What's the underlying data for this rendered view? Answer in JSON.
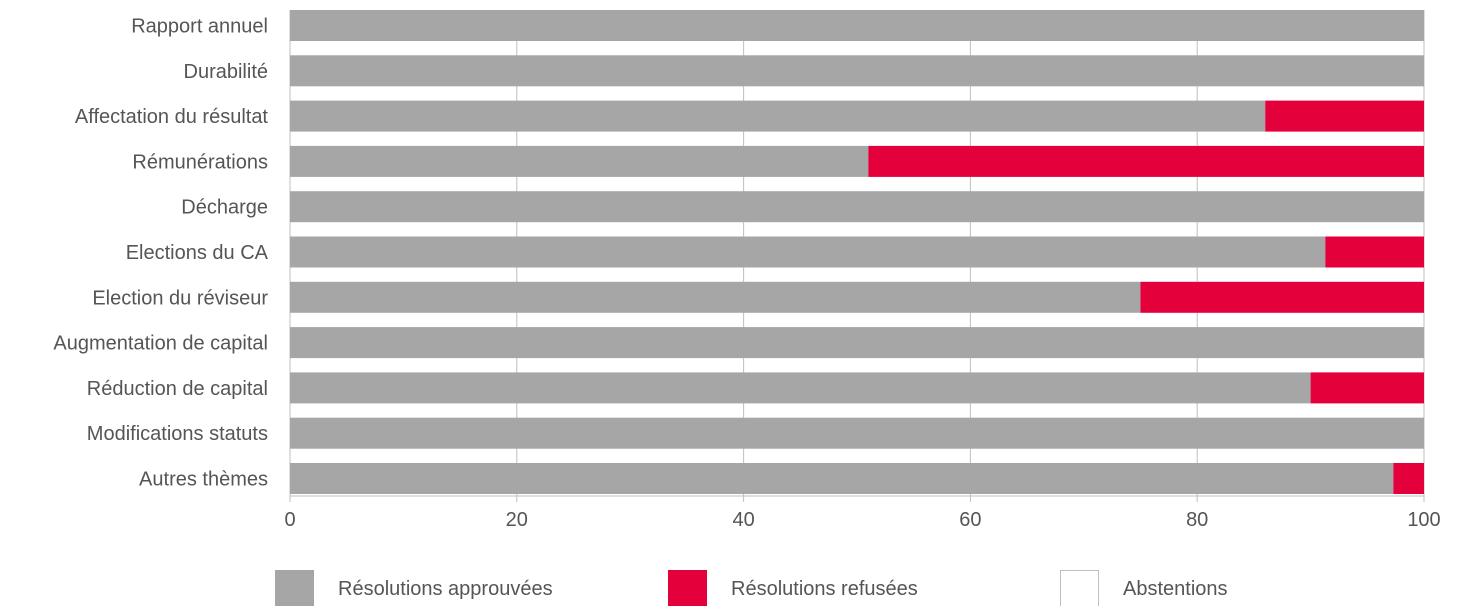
{
  "chart_data": {
    "type": "bar",
    "orientation": "horizontal",
    "stacked": true,
    "categories": [
      "Rapport annuel",
      "Durabilité",
      "Affectation du résultat",
      "Rémunérations",
      "Décharge",
      "Elections du CA",
      "Election du réviseur",
      "Augmentation de capital",
      "Réduction de capital",
      "Modifications statuts",
      "Autres thèmes"
    ],
    "series": [
      {
        "name": "Résolutions approuvées",
        "color": "#a6a6a6",
        "values": [
          100,
          100,
          86,
          51,
          100,
          91.3,
          75,
          100,
          90,
          100,
          97.3
        ]
      },
      {
        "name": "Résolutions refusées",
        "color": "#e4003a",
        "values": [
          0,
          0,
          14,
          49,
          0,
          8.7,
          25,
          0,
          10,
          0,
          2.7
        ]
      },
      {
        "name": "Abstentions",
        "color": "#ffffff",
        "values": [
          0,
          0,
          0,
          0,
          0,
          0,
          0,
          0,
          0,
          0,
          0
        ]
      }
    ],
    "xlim": [
      0,
      100
    ],
    "xticks": [
      "0",
      "20",
      "40",
      "60",
      "80",
      "100"
    ],
    "grid": true,
    "legend_position": "bottom",
    "title": "",
    "xlabel": "",
    "ylabel": ""
  }
}
